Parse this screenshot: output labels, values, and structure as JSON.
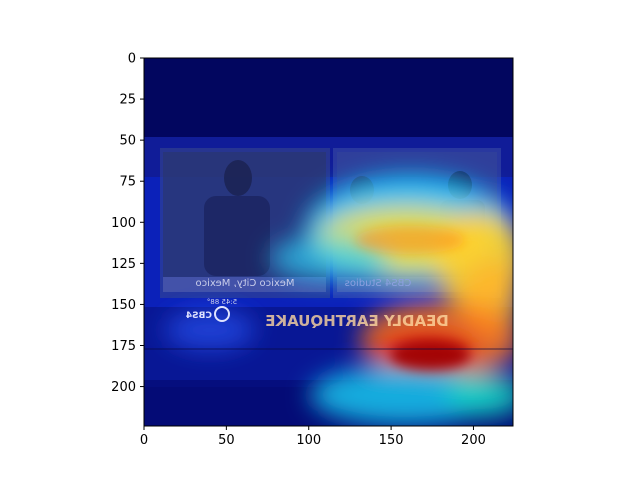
{
  "chart_data": {
    "type": "heatmap",
    "title": "",
    "xlabel": "",
    "ylabel": "",
    "xlim": [
      0,
      224
    ],
    "ylim": [
      224,
      0
    ],
    "x_ticks": [
      0,
      50,
      100,
      150,
      200
    ],
    "y_ticks": [
      0,
      25,
      50,
      75,
      100,
      125,
      150,
      175,
      200
    ],
    "colormap": "jet",
    "background_image_text": {
      "left_caption": "Mexico City, Mexico",
      "right_caption": "CBS4 Studios",
      "headline": "DEADLY EARTHQUAKE",
      "channel": "CBS4",
      "clock": "5:45 88°"
    },
    "hotspots": [
      {
        "x": 172,
        "y": 180,
        "intensity": 1.0
      },
      {
        "x": 150,
        "y": 175,
        "intensity": 0.9
      },
      {
        "x": 155,
        "y": 110,
        "intensity": 0.8
      },
      {
        "x": 200,
        "y": 128,
        "intensity": 0.75
      },
      {
        "x": 115,
        "y": 125,
        "intensity": 0.55
      },
      {
        "x": 215,
        "y": 200,
        "intensity": 0.5
      },
      {
        "x": 160,
        "y": 205,
        "intensity": 0.55
      }
    ]
  }
}
